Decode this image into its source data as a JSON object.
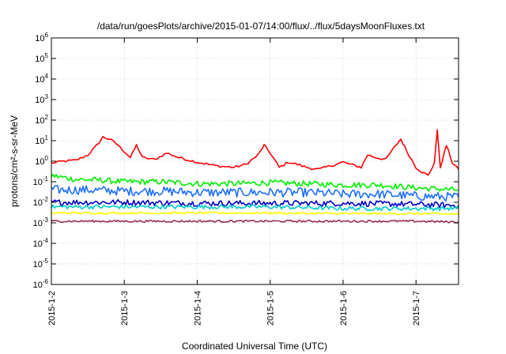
{
  "chart_data": {
    "type": "line",
    "title": "/data/run/goesPlots/archive/2015-01-07/14:00/flux/../flux/5daysMoonFluxes.txt",
    "xlabel": "Coordinated Universal Time (UTC)",
    "ylabel": "protons/cm²-s-sr-MeV",
    "y_scale": "log",
    "ylim": [
      1e-06,
      1000000.0
    ],
    "xlim": [
      "2015-01-02T00:00",
      "2015-01-07T14:00"
    ],
    "x_ticks": [
      {
        "x": "2015-01-02T00:00",
        "label": "2015-1-2"
      },
      {
        "x": "2015-01-03T00:00",
        "label": "2015-1-3"
      },
      {
        "x": "2015-01-04T00:00",
        "label": "2015-1-4"
      },
      {
        "x": "2015-01-05T00:00",
        "label": "2015-1-5"
      },
      {
        "x": "2015-01-06T00:00",
        "label": "2015-1-6"
      },
      {
        "x": "2015-01-07T00:00",
        "label": "2015-1-7"
      }
    ],
    "y_ticks": [
      {
        "value": 1e-06,
        "base": "10",
        "exp": "-6"
      },
      {
        "value": 1e-05,
        "base": "10",
        "exp": "-5"
      },
      {
        "value": 0.0001,
        "base": "10",
        "exp": "-4"
      },
      {
        "value": 0.001,
        "base": "10",
        "exp": "-3"
      },
      {
        "value": 0.01,
        "base": "10",
        "exp": "-2"
      },
      {
        "value": 0.1,
        "base": "10",
        "exp": "-1"
      },
      {
        "value": 1,
        "base": "10",
        "exp": "0"
      },
      {
        "value": 10.0,
        "base": "10",
        "exp": "1"
      },
      {
        "value": 100.0,
        "base": "10",
        "exp": "2"
      },
      {
        "value": 1000.0,
        "base": "10",
        "exp": "3"
      },
      {
        "value": 10000.0,
        "base": "10",
        "exp": "4"
      },
      {
        "value": 100000.0,
        "base": "10",
        "exp": "5"
      },
      {
        "value": 1000000.0,
        "base": "10",
        "exp": "6"
      }
    ],
    "grid": true,
    "legend": "none",
    "series": [
      {
        "color": "#ff0000",
        "points": [
          [
            "2015-01-02T00:00",
            0.8
          ],
          [
            "2015-01-02T04:00",
            1.0
          ],
          [
            "2015-01-02T08:00",
            1.1
          ],
          [
            "2015-01-02T12:00",
            2.0
          ],
          [
            "2015-01-02T15:00",
            6
          ],
          [
            "2015-01-02T17:00",
            15
          ],
          [
            "2015-01-02T19:00",
            12
          ],
          [
            "2015-01-02T21:00",
            8
          ],
          [
            "2015-01-03T00:00",
            3
          ],
          [
            "2015-01-03T02:00",
            1.5
          ],
          [
            "2015-01-03T04:00",
            6
          ],
          [
            "2015-01-03T06:00",
            1.5
          ],
          [
            "2015-01-03T10:00",
            1.2
          ],
          [
            "2015-01-03T14:00",
            2.5
          ],
          [
            "2015-01-03T18:00",
            1.5
          ],
          [
            "2015-01-04T00:00",
            0.9
          ],
          [
            "2015-01-04T06:00",
            0.6
          ],
          [
            "2015-01-04T12:00",
            0.5
          ],
          [
            "2015-01-04T16:00",
            0.7
          ],
          [
            "2015-01-04T20:00",
            2.0
          ],
          [
            "2015-01-04T22:00",
            6
          ],
          [
            "2015-01-05T00:00",
            2.5
          ],
          [
            "2015-01-05T03:00",
            0.5
          ],
          [
            "2015-01-05T06:00",
            0.9
          ],
          [
            "2015-01-05T09:00",
            0.7
          ],
          [
            "2015-01-05T12:00",
            0.5
          ],
          [
            "2015-01-05T16:00",
            0.4
          ],
          [
            "2015-01-05T20:00",
            0.6
          ],
          [
            "2015-01-06T00:00",
            0.9
          ],
          [
            "2015-01-06T04:00",
            0.6
          ],
          [
            "2015-01-06T06:00",
            0.5
          ],
          [
            "2015-01-06T08:00",
            2.0
          ],
          [
            "2015-01-06T11:00",
            1.5
          ],
          [
            "2015-01-06T14:00",
            1.2
          ],
          [
            "2015-01-06T17:00",
            5
          ],
          [
            "2015-01-06T19:00",
            12
          ],
          [
            "2015-01-06T21:00",
            3
          ],
          [
            "2015-01-07T00:00",
            0.5
          ],
          [
            "2015-01-07T02:00",
            0.3
          ],
          [
            "2015-01-07T04:00",
            0.2
          ],
          [
            "2015-01-07T06:00",
            0.8
          ],
          [
            "2015-01-07T07:00",
            30
          ],
          [
            "2015-01-07T08:00",
            0.5
          ],
          [
            "2015-01-07T10:00",
            6
          ],
          [
            "2015-01-07T12:00",
            0.8
          ],
          [
            "2015-01-07T14:00",
            0.4
          ]
        ]
      },
      {
        "color": "#00ee00",
        "points": [
          [
            "2015-01-02T00:00",
            0.2
          ],
          [
            "2015-01-02T08:00",
            0.13
          ],
          [
            "2015-01-02T16:00",
            0.12
          ],
          [
            "2015-01-03T00:00",
            0.1
          ],
          [
            "2015-01-03T12:00",
            0.1
          ],
          [
            "2015-01-04T00:00",
            0.08
          ],
          [
            "2015-01-04T12:00",
            0.08
          ],
          [
            "2015-01-05T00:00",
            0.09
          ],
          [
            "2015-01-05T12:00",
            0.08
          ],
          [
            "2015-01-06T00:00",
            0.07
          ],
          [
            "2015-01-06T12:00",
            0.07
          ],
          [
            "2015-01-07T00:00",
            0.05
          ],
          [
            "2015-01-07T14:00",
            0.04
          ]
        ]
      },
      {
        "color": "#1e6fff",
        "points": [
          [
            "2015-01-02T00:00",
            0.04
          ],
          [
            "2015-01-02T12:00",
            0.04
          ],
          [
            "2015-01-03T00:00",
            0.035
          ],
          [
            "2015-01-03T12:00",
            0.035
          ],
          [
            "2015-01-04T00:00",
            0.03
          ],
          [
            "2015-01-04T12:00",
            0.03
          ],
          [
            "2015-01-05T00:00",
            0.03
          ],
          [
            "2015-01-05T12:00",
            0.03
          ],
          [
            "2015-01-06T00:00",
            0.025
          ],
          [
            "2015-01-06T12:00",
            0.025
          ],
          [
            "2015-01-07T00:00",
            0.02
          ],
          [
            "2015-01-07T14:00",
            0.018
          ]
        ]
      },
      {
        "color": "#0000c8",
        "points": [
          [
            "2015-01-02T00:00",
            0.01
          ],
          [
            "2015-01-03T00:00",
            0.01
          ],
          [
            "2015-01-04T00:00",
            0.009
          ],
          [
            "2015-01-05T00:00",
            0.009
          ],
          [
            "2015-01-06T00:00",
            0.009
          ],
          [
            "2015-01-07T00:00",
            0.008
          ],
          [
            "2015-01-07T14:00",
            0.007
          ]
        ]
      },
      {
        "color": "#00cccc",
        "points": [
          [
            "2015-01-02T00:00",
            0.006
          ],
          [
            "2015-01-03T00:00",
            0.006
          ],
          [
            "2015-01-04T00:00",
            0.006
          ],
          [
            "2015-01-05T00:00",
            0.006
          ],
          [
            "2015-01-06T00:00",
            0.005
          ],
          [
            "2015-01-07T00:00",
            0.005
          ],
          [
            "2015-01-07T14:00",
            0.005
          ]
        ]
      },
      {
        "color": "#ffff00",
        "points": [
          [
            "2015-01-02T00:00",
            0.003
          ],
          [
            "2015-01-03T00:00",
            0.003
          ],
          [
            "2015-01-04T00:00",
            0.003
          ],
          [
            "2015-01-05T00:00",
            0.003
          ],
          [
            "2015-01-06T00:00",
            0.0028
          ],
          [
            "2015-01-07T00:00",
            0.0028
          ],
          [
            "2015-01-07T14:00",
            0.0027
          ]
        ]
      },
      {
        "color": "#9b2d5a",
        "points": [
          [
            "2015-01-02T00:00",
            0.0012
          ],
          [
            "2015-01-03T00:00",
            0.0012
          ],
          [
            "2015-01-04T00:00",
            0.0012
          ],
          [
            "2015-01-05T00:00",
            0.0012
          ],
          [
            "2015-01-06T00:00",
            0.0012
          ],
          [
            "2015-01-07T00:00",
            0.0012
          ],
          [
            "2015-01-07T14:00",
            0.0011
          ]
        ]
      }
    ]
  }
}
